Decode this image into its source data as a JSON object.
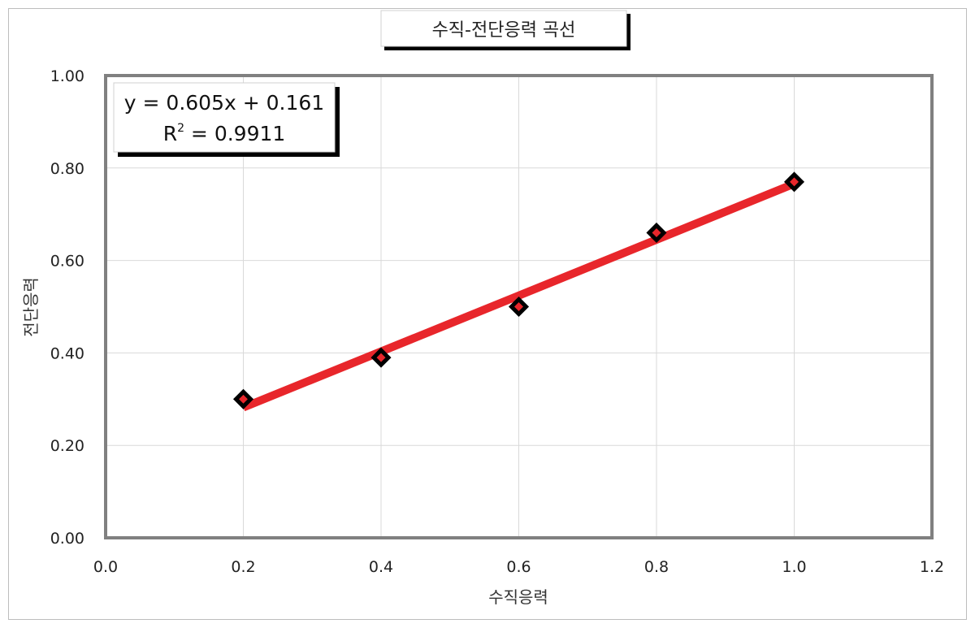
{
  "chart_data": {
    "type": "scatter",
    "title": "수직-전단응력 곡선",
    "xlabel": "수직응력",
    "ylabel": "전단응력",
    "xlim": [
      0.0,
      1.2
    ],
    "ylim": [
      0.0,
      1.0
    ],
    "x_ticks": [
      "0.0",
      "0.2",
      "0.4",
      "0.6",
      "0.8",
      "1.0",
      "1.2"
    ],
    "y_ticks": [
      "0.00",
      "0.20",
      "0.40",
      "0.60",
      "0.80",
      "1.00"
    ],
    "grid": true,
    "series": [
      {
        "x": [
          0.2,
          0.4,
          0.6,
          0.8,
          1.0
        ],
        "y": [
          0.3,
          0.39,
          0.5,
          0.66,
          0.77
        ],
        "marker": "diamond",
        "color": "#e8262b"
      }
    ],
    "trendline": {
      "slope": 0.605,
      "intercept": 0.161,
      "x_range": [
        0.2,
        1.0
      ],
      "color": "#e8262b",
      "equation": "y = 0.605x + 0.161",
      "r2_label": "R",
      "r2_superscript": "2",
      "r2_value": " = 0.9911"
    }
  }
}
